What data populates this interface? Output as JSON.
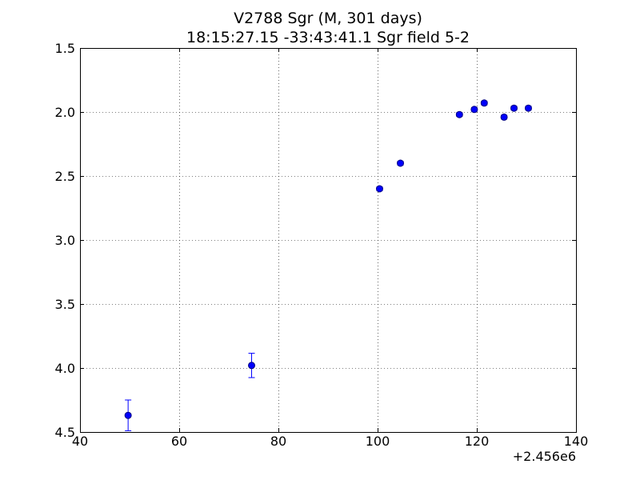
{
  "chart_data": {
    "type": "scatter",
    "title": "V2788 Sgr  (M, 301 days)",
    "subtitle": "18:15:27.15 -33:43:41.1 Sgr field 5-2",
    "xlabel": "",
    "ylabel": "",
    "x_offset_label": "+2.456e6",
    "xlim": [
      40,
      140
    ],
    "ylim": [
      1.5,
      4.5
    ],
    "y_inverted": true,
    "grid": true,
    "x_ticks": [
      40,
      60,
      80,
      100,
      120,
      140
    ],
    "x_tick_labels": [
      "40",
      "60",
      "80",
      "100",
      "120",
      "140"
    ],
    "y_ticks": [
      1.5,
      2.0,
      2.5,
      3.0,
      3.5,
      4.0,
      4.5
    ],
    "y_tick_labels": [
      "1.5",
      "2.0",
      "2.5",
      "3.0",
      "3.5",
      "4.0",
      "4.5"
    ],
    "series": [
      {
        "x": [
          49.7,
          74.6,
          100.4,
          104.6,
          116.5,
          119.5,
          121.5,
          125.5,
          127.5,
          130.4
        ],
        "y": [
          4.37,
          3.98,
          2.6,
          2.4,
          2.02,
          1.98,
          1.93,
          2.04,
          1.97,
          1.97
        ],
        "yerr": [
          0.12,
          0.095,
          0.015,
          0.015,
          0.015,
          0.015,
          0.015,
          0.015,
          0.015,
          0.015
        ],
        "color": "#0000ff"
      }
    ]
  }
}
